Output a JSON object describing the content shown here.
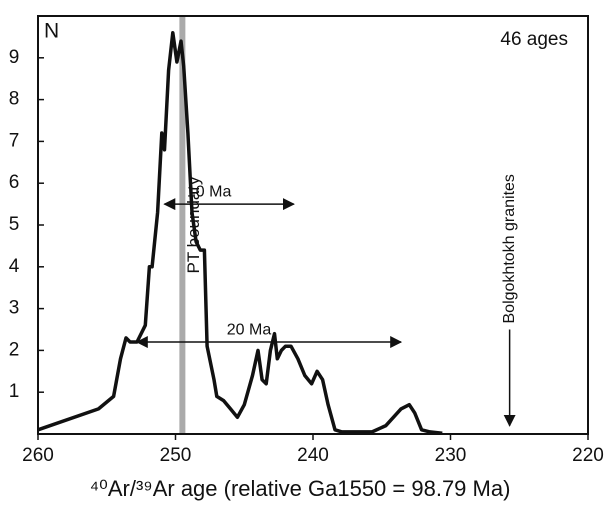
{
  "chart_data": {
    "type": "line",
    "y_label": "N",
    "x_label": "⁴⁰Ar/³⁹Ar age (relative Ga1550 = 98.79 Ma)",
    "count_label": "46 ages",
    "x": [
      260,
      255.6,
      254.5,
      254.0,
      253.6,
      253.3,
      252.8,
      252.2,
      251.9,
      251.7,
      251.3,
      251.0,
      250.8,
      250.5,
      250.2,
      249.9,
      249.6,
      249.4,
      249.1,
      248.8,
      248.5,
      248.2,
      247.9,
      247.7,
      247.2,
      247.0,
      246.5,
      246.0,
      245.5,
      245.0,
      244.4,
      244.0,
      243.7,
      243.4,
      243.1,
      242.8,
      242.6,
      242.3,
      242.0,
      241.6,
      241.1,
      240.6,
      240.1,
      239.7,
      239.3,
      238.9,
      238.4,
      237.9,
      235.7,
      234.7,
      233.6,
      233.0,
      232.6,
      232.1,
      231.5,
      230.6
    ],
    "series": [
      {
        "color": "#111111",
        "values": [
          0.1,
          0.6,
          0.9,
          1.8,
          2.3,
          2.2,
          2.2,
          2.6,
          4.0,
          4.0,
          5.3,
          7.2,
          6.8,
          8.7,
          9.6,
          8.9,
          9.4,
          8.8,
          7.2,
          5.3,
          4.6,
          4.4,
          4.4,
          2.1,
          1.3,
          0.9,
          0.8,
          0.6,
          0.4,
          0.7,
          1.4,
          2.0,
          1.3,
          1.2,
          2.0,
          2.4,
          1.8,
          2.0,
          2.1,
          2.1,
          1.8,
          1.4,
          1.2,
          1.5,
          1.3,
          0.7,
          0.1,
          0.05,
          0.05,
          0.2,
          0.6,
          0.7,
          0.5,
          0.1,
          0.05,
          0.02
        ]
      }
    ],
    "xlim": [
      260,
      220
    ],
    "ylim": [
      0,
      10
    ],
    "xticks": [
      260,
      250,
      240,
      230,
      220
    ],
    "yticks": [
      1,
      2,
      3,
      4,
      5,
      6,
      7,
      8,
      9
    ],
    "boundary": {
      "text": "PT boundary",
      "x": 249.5,
      "color": "#aaaaaa"
    },
    "spans": [
      {
        "text": "10 Ma",
        "x": [
          250.8,
          241.4
        ],
        "y": 5.5
      },
      {
        "text": "20 Ma",
        "x": [
          252.8,
          233.6
        ],
        "y": 2.2
      }
    ],
    "marker": {
      "text": "Bolgokhtokh granites",
      "x": 225.7,
      "y": [
        2.5,
        0.2
      ]
    }
  }
}
